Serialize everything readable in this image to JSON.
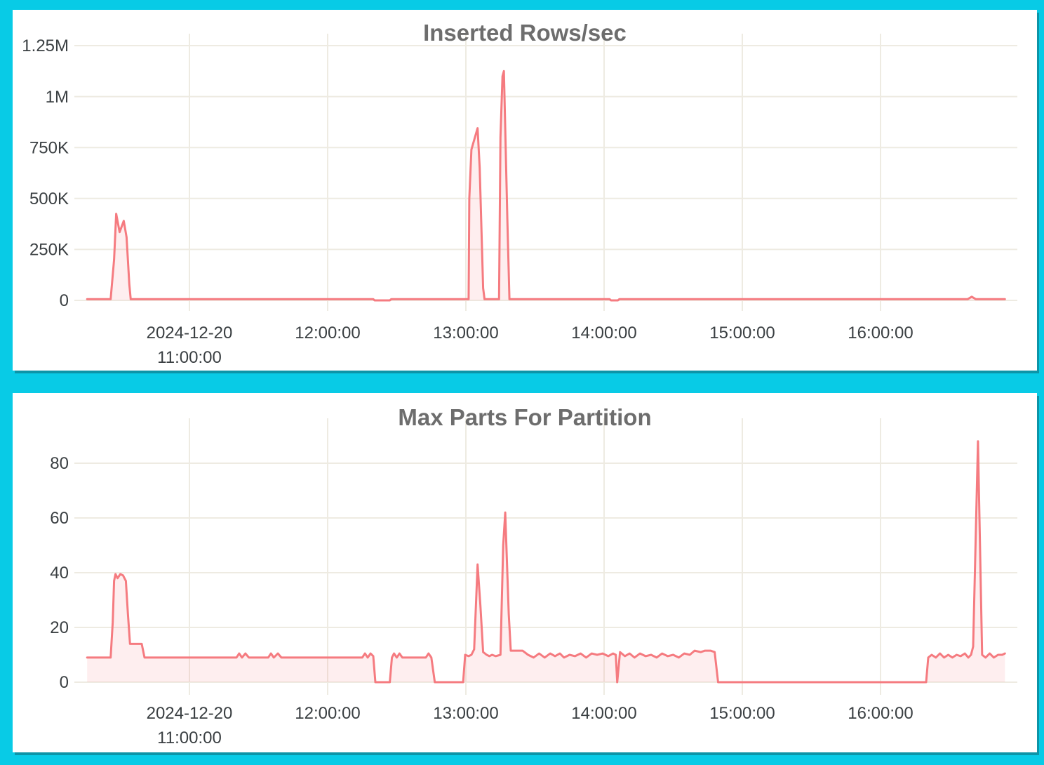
{
  "page": {
    "background": "#08cbe6",
    "card_background": "#ffffff",
    "card_shadow_color": "#0c94a7",
    "gridline_color": "#eeebe2",
    "line_color": "#f57b80",
    "fill_color": "rgba(245,123,128,0.13)",
    "title_color": "#6d6d6d",
    "tick_color": "#3a3f42"
  },
  "chart_data": [
    {
      "type": "area",
      "title": "Inserted Rows/sec",
      "xlabel": "",
      "ylabel": "",
      "grid": true,
      "legend": "none",
      "x_unit": "time of day (hours), 2024-12-20",
      "xlim": [
        10.25,
        16.95
      ],
      "ylim": [
        0,
        1320000
      ],
      "x_ticks": [
        {
          "hour": 11,
          "lines": [
            "2024-12-20",
            "11:00:00"
          ]
        },
        {
          "hour": 12,
          "lines": [
            "12:00:00"
          ]
        },
        {
          "hour": 13,
          "lines": [
            "13:00:00"
          ]
        },
        {
          "hour": 14,
          "lines": [
            "14:00:00"
          ]
        },
        {
          "hour": 15,
          "lines": [
            "15:00:00"
          ]
        },
        {
          "hour": 16,
          "lines": [
            "16:00:00"
          ]
        }
      ],
      "y_ticks": [
        {
          "value": 0,
          "label": "0"
        },
        {
          "value": 250000,
          "label": "250K"
        },
        {
          "value": 500000,
          "label": "500K"
        },
        {
          "value": 750000,
          "label": "750K"
        },
        {
          "value": 1000000,
          "label": "1M"
        },
        {
          "value": 1250000,
          "label": "1.25M"
        }
      ],
      "points": [
        [
          10.26,
          6000
        ],
        [
          10.43,
          6000
        ],
        [
          10.455,
          200000
        ],
        [
          10.47,
          425000
        ],
        [
          10.495,
          335000
        ],
        [
          10.525,
          390000
        ],
        [
          10.545,
          310000
        ],
        [
          10.565,
          80000
        ],
        [
          10.575,
          6000
        ],
        [
          12.33,
          6000
        ],
        [
          12.34,
          0
        ],
        [
          12.45,
          0
        ],
        [
          12.46,
          6000
        ],
        [
          13.02,
          6000
        ],
        [
          13.025,
          500000
        ],
        [
          13.04,
          740000
        ],
        [
          13.085,
          845000
        ],
        [
          13.1,
          650000
        ],
        [
          13.125,
          60000
        ],
        [
          13.135,
          6000
        ],
        [
          13.24,
          6000
        ],
        [
          13.25,
          800000
        ],
        [
          13.265,
          1100000
        ],
        [
          13.275,
          1125000
        ],
        [
          13.3,
          400000
        ],
        [
          13.315,
          6000
        ],
        [
          14.04,
          6000
        ],
        [
          14.05,
          0
        ],
        [
          14.1,
          0
        ],
        [
          14.11,
          6000
        ],
        [
          15.8,
          6000
        ],
        [
          16.63,
          6000
        ],
        [
          16.66,
          18000
        ],
        [
          16.69,
          6000
        ],
        [
          16.9,
          6000
        ]
      ]
    },
    {
      "type": "area",
      "title": "Max Parts For Partition",
      "xlabel": "",
      "ylabel": "",
      "grid": true,
      "legend": "none",
      "x_unit": "time of day (hours), 2024-12-20",
      "xlim": [
        10.25,
        16.95
      ],
      "ylim": [
        0,
        93
      ],
      "x_ticks": [
        {
          "hour": 11,
          "lines": [
            "2024-12-20",
            "11:00:00"
          ]
        },
        {
          "hour": 12,
          "lines": [
            "12:00:00"
          ]
        },
        {
          "hour": 13,
          "lines": [
            "13:00:00"
          ]
        },
        {
          "hour": 14,
          "lines": [
            "14:00:00"
          ]
        },
        {
          "hour": 15,
          "lines": [
            "15:00:00"
          ]
        },
        {
          "hour": 16,
          "lines": [
            "16:00:00"
          ]
        }
      ],
      "y_ticks": [
        {
          "value": 0,
          "label": "0"
        },
        {
          "value": 20,
          "label": "20"
        },
        {
          "value": 40,
          "label": "40"
        },
        {
          "value": 60,
          "label": "60"
        },
        {
          "value": 80,
          "label": "80"
        }
      ],
      "points": [
        [
          10.26,
          9
        ],
        [
          10.43,
          9
        ],
        [
          10.445,
          22
        ],
        [
          10.455,
          37
        ],
        [
          10.465,
          39.5
        ],
        [
          10.48,
          38
        ],
        [
          10.5,
          39.5
        ],
        [
          10.52,
          39
        ],
        [
          10.54,
          37
        ],
        [
          10.555,
          25
        ],
        [
          10.57,
          14
        ],
        [
          10.655,
          14
        ],
        [
          10.675,
          9
        ],
        [
          11.34,
          9
        ],
        [
          11.36,
          10.5
        ],
        [
          11.38,
          9
        ],
        [
          11.405,
          10.5
        ],
        [
          11.43,
          9
        ],
        [
          11.57,
          9
        ],
        [
          11.59,
          10.5
        ],
        [
          11.61,
          9
        ],
        [
          11.64,
          10.5
        ],
        [
          11.665,
          9
        ],
        [
          12.25,
          9
        ],
        [
          12.27,
          10.5
        ],
        [
          12.29,
          9
        ],
        [
          12.31,
          10.5
        ],
        [
          12.33,
          9.5
        ],
        [
          12.345,
          0
        ],
        [
          12.45,
          0
        ],
        [
          12.465,
          9
        ],
        [
          12.48,
          10.5
        ],
        [
          12.5,
          9
        ],
        [
          12.52,
          10.5
        ],
        [
          12.54,
          9
        ],
        [
          12.71,
          9
        ],
        [
          12.73,
          10.5
        ],
        [
          12.75,
          9
        ],
        [
          12.775,
          0
        ],
        [
          12.98,
          0
        ],
        [
          12.995,
          10
        ],
        [
          13.02,
          9.5
        ],
        [
          13.04,
          10
        ],
        [
          13.06,
          12
        ],
        [
          13.085,
          43
        ],
        [
          13.105,
          28
        ],
        [
          13.125,
          11
        ],
        [
          13.15,
          10
        ],
        [
          13.17,
          9.5
        ],
        [
          13.19,
          10
        ],
        [
          13.215,
          9.5
        ],
        [
          13.25,
          10
        ],
        [
          13.27,
          50
        ],
        [
          13.285,
          62
        ],
        [
          13.31,
          25
        ],
        [
          13.325,
          11.5
        ],
        [
          13.41,
          11.5
        ],
        [
          13.45,
          10
        ],
        [
          13.49,
          9
        ],
        [
          13.53,
          10.5
        ],
        [
          13.57,
          9
        ],
        [
          13.61,
          10.5
        ],
        [
          13.645,
          9.5
        ],
        [
          13.68,
          10.5
        ],
        [
          13.71,
          9
        ],
        [
          13.75,
          10
        ],
        [
          13.79,
          9.5
        ],
        [
          13.83,
          10.5
        ],
        [
          13.87,
          9
        ],
        [
          13.91,
          10.5
        ],
        [
          13.95,
          10
        ],
        [
          13.99,
          10.5
        ],
        [
          14.03,
          9.5
        ],
        [
          14.065,
          10.5
        ],
        [
          14.085,
          10
        ],
        [
          14.095,
          0
        ],
        [
          14.115,
          11
        ],
        [
          14.15,
          9.5
        ],
        [
          14.185,
          10.5
        ],
        [
          14.22,
          9
        ],
        [
          14.26,
          10.5
        ],
        [
          14.3,
          9.5
        ],
        [
          14.34,
          10
        ],
        [
          14.38,
          9
        ],
        [
          14.42,
          10.5
        ],
        [
          14.46,
          9.5
        ],
        [
          14.5,
          10
        ],
        [
          14.54,
          9
        ],
        [
          14.58,
          10.5
        ],
        [
          14.62,
          10
        ],
        [
          14.655,
          11.5
        ],
        [
          14.7,
          11
        ],
        [
          14.73,
          11.5
        ],
        [
          14.77,
          11.5
        ],
        [
          14.8,
          11
        ],
        [
          14.825,
          0
        ],
        [
          16.33,
          0
        ],
        [
          16.345,
          9
        ],
        [
          16.37,
          10
        ],
        [
          16.4,
          9
        ],
        [
          16.43,
          10.5
        ],
        [
          16.46,
          9
        ],
        [
          16.49,
          10
        ],
        [
          16.52,
          9
        ],
        [
          16.55,
          10
        ],
        [
          16.58,
          9.5
        ],
        [
          16.61,
          10.5
        ],
        [
          16.635,
          9
        ],
        [
          16.655,
          10
        ],
        [
          16.67,
          13
        ],
        [
          16.705,
          88
        ],
        [
          16.735,
          10
        ],
        [
          16.76,
          9
        ],
        [
          16.79,
          10.5
        ],
        [
          16.82,
          9
        ],
        [
          16.85,
          10
        ],
        [
          16.88,
          10
        ],
        [
          16.9,
          10.5
        ]
      ]
    }
  ]
}
